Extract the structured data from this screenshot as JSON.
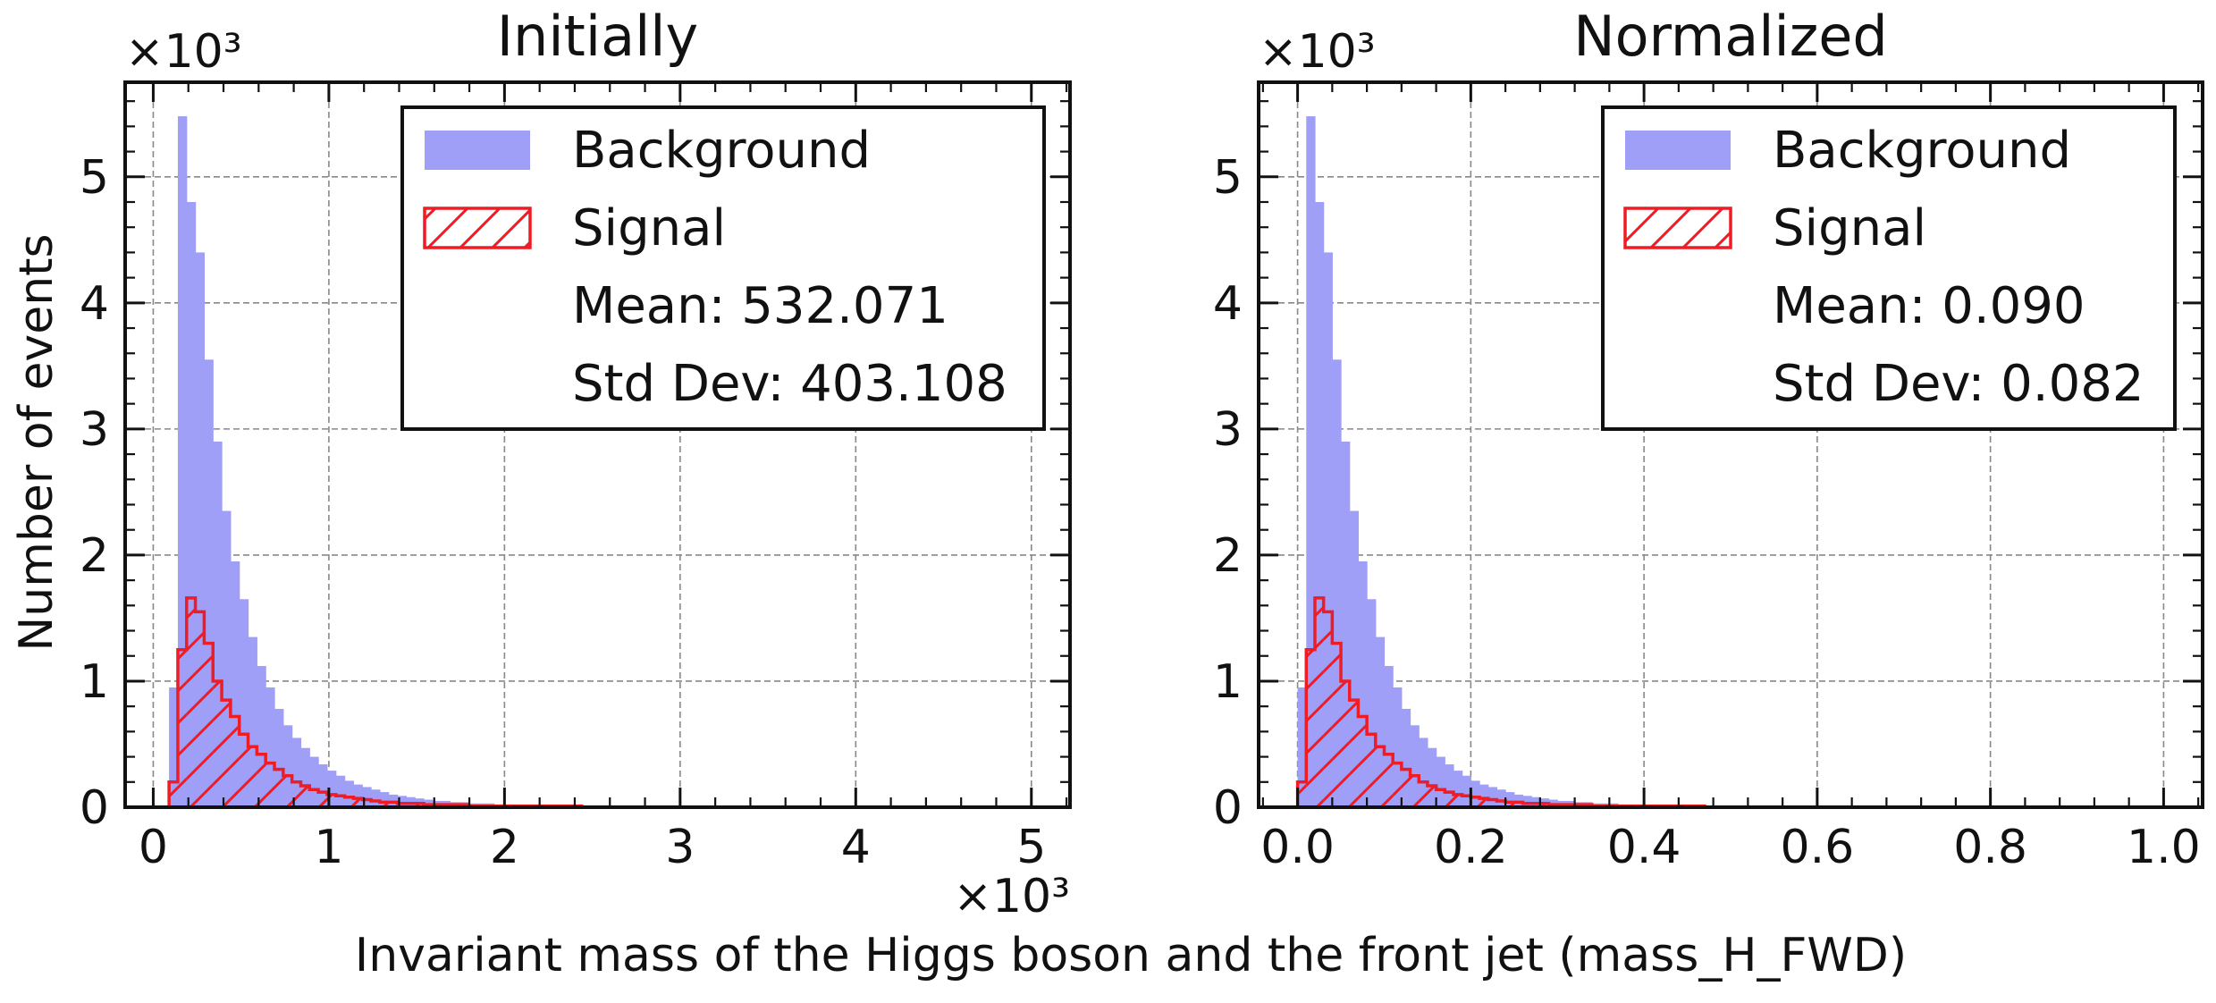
{
  "figure": {
    "ylabel": "Number of events",
    "xlabel": "Invariant mass of the Higgs boson and the front jet (mass_H_FWD)"
  },
  "colors": {
    "background": "#9f9ff7",
    "signal": "#ee1c25",
    "grid": "#888888",
    "axis": "#111111"
  },
  "chart_data": [
    {
      "type": "bar",
      "title": "Initially",
      "x_multiplier_label": "×10³",
      "y_multiplier_label": "×10³",
      "xlim": [
        -0.16,
        5.22
      ],
      "ylim": [
        0,
        5.75
      ],
      "x_ticks": [
        0,
        1,
        2,
        3,
        4,
        5
      ],
      "x_tick_labels": [
        "0",
        "1",
        "2",
        "3",
        "4",
        "5"
      ],
      "y_ticks": [
        0,
        1,
        2,
        3,
        4,
        5
      ],
      "y_tick_labels": [
        "0",
        "1",
        "2",
        "3",
        "4",
        "5"
      ],
      "grid": true,
      "legend_position": "top-right",
      "legend": [
        {
          "label": "Background",
          "kind": "filled"
        },
        {
          "label": "Signal",
          "kind": "hatched"
        },
        {
          "label": "Mean: 532.071",
          "kind": "text"
        },
        {
          "label": "Std Dev: 403.108",
          "kind": "text"
        }
      ],
      "bin_start": 0.09,
      "bin_width": 0.05,
      "series": [
        {
          "name": "Background",
          "values": [
            0.95,
            5.48,
            4.8,
            4.4,
            3.55,
            2.9,
            2.35,
            1.95,
            1.65,
            1.35,
            1.12,
            0.95,
            0.78,
            0.65,
            0.55,
            0.47,
            0.4,
            0.34,
            0.29,
            0.25,
            0.21,
            0.18,
            0.16,
            0.14,
            0.12,
            0.1,
            0.09,
            0.08,
            0.07,
            0.06,
            0.05,
            0.05,
            0.04,
            0.04,
            0.03,
            0.03,
            0.03,
            0.02,
            0.02,
            0.02,
            0.02,
            0.02,
            0.01,
            0.01,
            0.01,
            0.01,
            0.01,
            0.01,
            0.01,
            0.01
          ]
        },
        {
          "name": "Signal",
          "values": [
            0.2,
            1.25,
            1.66,
            1.55,
            1.3,
            1.0,
            0.85,
            0.72,
            0.58,
            0.48,
            0.42,
            0.35,
            0.3,
            0.25,
            0.2,
            0.17,
            0.14,
            0.12,
            0.1,
            0.09,
            0.08,
            0.07,
            0.06,
            0.05,
            0.04,
            0.04,
            0.03,
            0.03,
            0.03,
            0.02,
            0.02,
            0.02,
            0.02,
            0.02,
            0.01,
            0.01,
            0.01,
            0.01,
            0.01,
            0.01,
            0.01,
            0.01,
            0.01,
            0.01,
            0.01,
            0.01,
            0.01,
            0.0,
            0.0,
            0.0
          ]
        }
      ]
    },
    {
      "type": "bar",
      "title": "Normalized",
      "x_multiplier_label": "",
      "y_multiplier_label": "×10³",
      "xlim": [
        -0.045,
        1.045
      ],
      "ylim": [
        0,
        5.75
      ],
      "x_ticks": [
        0.0,
        0.2,
        0.4,
        0.6,
        0.8,
        1.0
      ],
      "x_tick_labels": [
        "0.0",
        "0.2",
        "0.4",
        "0.6",
        "0.8",
        "1.0"
      ],
      "y_ticks": [
        0,
        1,
        2,
        3,
        4,
        5
      ],
      "y_tick_labels": [
        "0",
        "1",
        "2",
        "3",
        "4",
        "5"
      ],
      "grid": true,
      "legend_position": "top-right",
      "legend": [
        {
          "label": "Background",
          "kind": "filled"
        },
        {
          "label": "Signal",
          "kind": "hatched"
        },
        {
          "label": "Mean: 0.090",
          "kind": "text"
        },
        {
          "label": "Std Dev: 0.082",
          "kind": "text"
        }
      ],
      "bin_start": 0.0,
      "bin_width": 0.01,
      "series": [
        {
          "name": "Background",
          "values": [
            0.95,
            5.48,
            4.8,
            4.4,
            3.55,
            2.9,
            2.35,
            1.95,
            1.65,
            1.35,
            1.12,
            0.95,
            0.78,
            0.65,
            0.55,
            0.47,
            0.4,
            0.34,
            0.29,
            0.25,
            0.21,
            0.18,
            0.16,
            0.14,
            0.12,
            0.1,
            0.09,
            0.08,
            0.07,
            0.06,
            0.05,
            0.05,
            0.04,
            0.04,
            0.03,
            0.03,
            0.03,
            0.02,
            0.02,
            0.02,
            0.02,
            0.02,
            0.01,
            0.01,
            0.01,
            0.01,
            0.01,
            0.01,
            0.01,
            0.01
          ]
        },
        {
          "name": "Signal",
          "values": [
            0.2,
            1.25,
            1.66,
            1.55,
            1.3,
            1.0,
            0.85,
            0.72,
            0.58,
            0.48,
            0.42,
            0.35,
            0.3,
            0.25,
            0.2,
            0.17,
            0.14,
            0.12,
            0.1,
            0.09,
            0.08,
            0.07,
            0.06,
            0.05,
            0.04,
            0.04,
            0.03,
            0.03,
            0.03,
            0.02,
            0.02,
            0.02,
            0.02,
            0.02,
            0.01,
            0.01,
            0.01,
            0.01,
            0.01,
            0.01,
            0.01,
            0.01,
            0.01,
            0.01,
            0.01,
            0.01,
            0.01,
            0.0,
            0.0,
            0.0
          ]
        }
      ]
    }
  ]
}
